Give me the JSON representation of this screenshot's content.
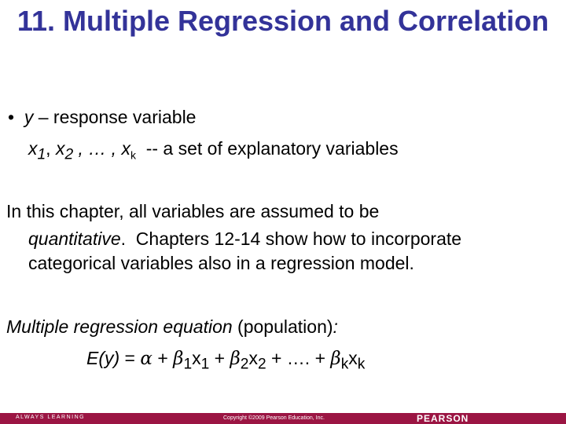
{
  "title": "11. Multiple Regression and Correlation",
  "bullet": {
    "symbol": "•",
    "var": "y",
    "text": " – response variable"
  },
  "explanatory": {
    "vars": "x",
    "s1": "1",
    "s2": "2",
    "sk": "k",
    "sep1": ", ",
    "sep2": " , … , ",
    "text": "  -- a set of explanatory variables"
  },
  "para": {
    "line1": "In this chapter, all variables are assumed to be",
    "italic": "quantitative",
    "line2rest": ".  Chapters 12-14 show how to incorporate",
    "line3": "categorical variables also in a regression model."
  },
  "equation_label": {
    "italic": "Multiple regression equation",
    "rest": " (population)",
    "colon": ":"
  },
  "equation": {
    "lhs": "E(y)",
    "eq": " = ",
    "alpha": "α",
    "plus": " + ",
    "beta": "β",
    "s1": "1",
    "x": "x",
    "s2": "2",
    "k": "k",
    "dots": " + …. + "
  },
  "footer": {
    "left": "ALWAYS LEARNING",
    "copyright": "Copyright ©2009 Pearson Education, Inc.",
    "brand": "PEARSON"
  },
  "colors": {
    "title": "#333399",
    "footer": "#9b1543"
  }
}
